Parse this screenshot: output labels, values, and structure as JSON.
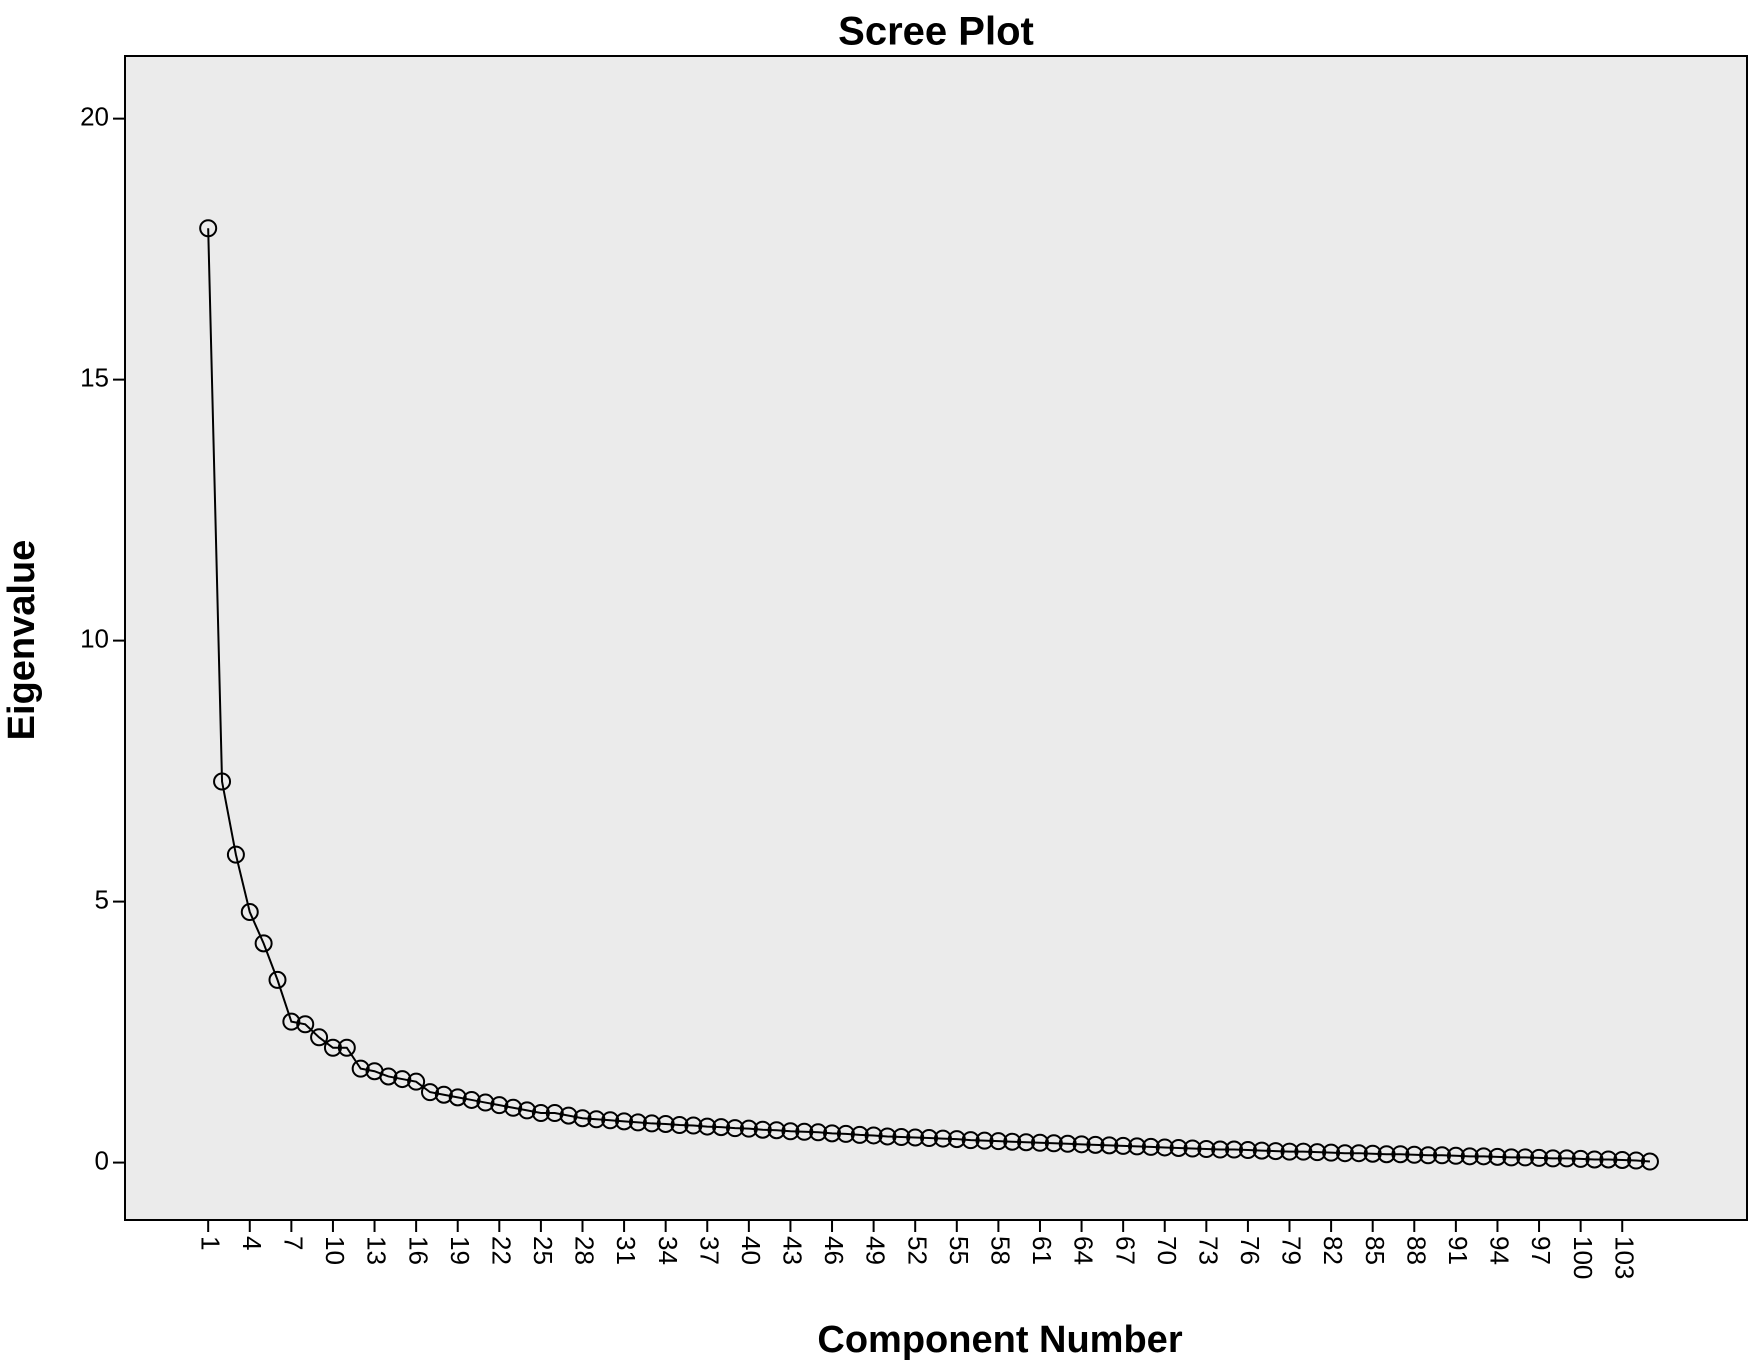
{
  "chart_data": {
    "type": "line",
    "title": "Scree Plot",
    "x_label": "Component Number",
    "y_label": "Eigenvalue",
    "x": [
      1,
      2,
      3,
      4,
      5,
      6,
      7,
      8,
      9,
      10,
      11,
      12,
      13,
      14,
      15,
      16,
      17,
      18,
      19,
      20,
      21,
      22,
      23,
      24,
      25,
      26,
      27,
      28,
      29,
      30,
      31,
      32,
      33,
      34,
      35,
      36,
      37,
      38,
      39,
      40,
      41,
      42,
      43,
      44,
      45,
      46,
      47,
      48,
      49,
      50,
      51,
      52,
      53,
      54,
      55,
      56,
      57,
      58,
      59,
      60,
      61,
      62,
      63,
      64,
      65,
      66,
      67,
      68,
      69,
      70,
      71,
      72,
      73,
      74,
      75,
      76,
      77,
      78,
      79,
      80,
      81,
      82,
      83,
      84,
      85,
      86,
      87,
      88,
      89,
      90,
      91,
      92,
      93,
      94,
      95,
      96,
      97,
      98,
      99,
      100,
      101,
      102,
      103,
      104,
      105
    ],
    "values": [
      17.9,
      7.3,
      5.9,
      4.8,
      4.2,
      3.5,
      2.7,
      2.65,
      2.4,
      2.2,
      2.2,
      1.8,
      1.75,
      1.65,
      1.6,
      1.55,
      1.35,
      1.3,
      1.25,
      1.2,
      1.15,
      1.1,
      1.05,
      1.0,
      0.95,
      0.95,
      0.9,
      0.85,
      0.83,
      0.81,
      0.79,
      0.77,
      0.75,
      0.74,
      0.72,
      0.71,
      0.69,
      0.68,
      0.66,
      0.65,
      0.63,
      0.62,
      0.6,
      0.59,
      0.58,
      0.56,
      0.55,
      0.53,
      0.52,
      0.5,
      0.49,
      0.48,
      0.47,
      0.46,
      0.45,
      0.43,
      0.42,
      0.41,
      0.4,
      0.39,
      0.38,
      0.37,
      0.36,
      0.35,
      0.34,
      0.33,
      0.32,
      0.31,
      0.3,
      0.29,
      0.28,
      0.27,
      0.26,
      0.25,
      0.25,
      0.24,
      0.23,
      0.22,
      0.21,
      0.21,
      0.2,
      0.19,
      0.18,
      0.18,
      0.17,
      0.16,
      0.16,
      0.15,
      0.14,
      0.14,
      0.13,
      0.12,
      0.12,
      0.11,
      0.1,
      0.1,
      0.09,
      0.08,
      0.08,
      0.07,
      0.06,
      0.06,
      0.05,
      0.04,
      0.02
    ],
    "color": "#000000",
    "xlim": [
      -5,
      112
    ],
    "xticks": [
      1,
      4,
      7,
      10,
      13,
      16,
      19,
      22,
      25,
      28,
      31,
      34,
      37,
      40,
      43,
      46,
      49,
      52,
      55,
      58,
      61,
      64,
      67,
      70,
      73,
      76,
      79,
      82,
      85,
      88,
      91,
      94,
      97,
      100,
      103
    ],
    "ylim": [
      -1.1,
      21.2
    ],
    "yticks": [
      0,
      5,
      10,
      15,
      20
    ],
    "grid": false
  }
}
